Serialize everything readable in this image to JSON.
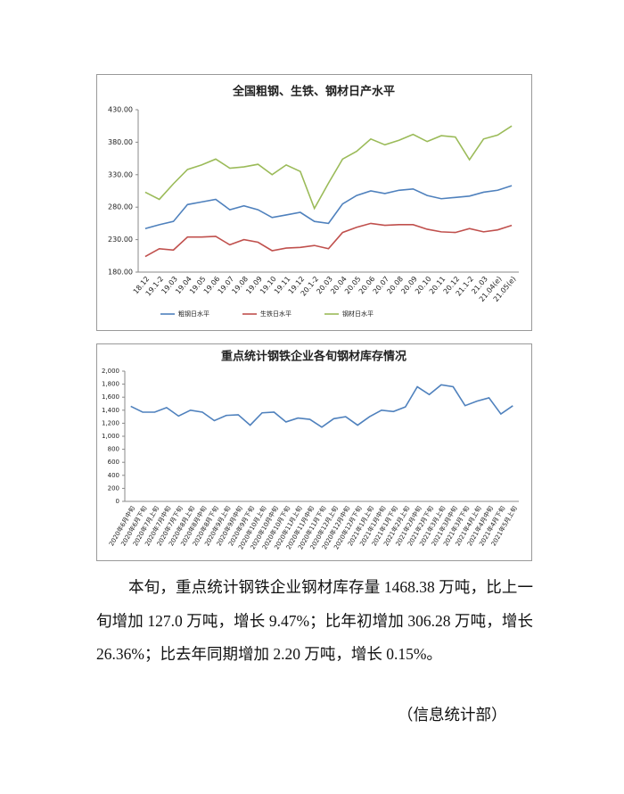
{
  "chart_data": [
    {
      "type": "line",
      "title": "全国粗钢、生铁、钢材日产水平",
      "categories": [
        "18.12",
        "19.1-2",
        "19.03",
        "19.04",
        "19.05",
        "19.06",
        "19.07",
        "19.08",
        "19.09",
        "19.10",
        "19.11",
        "19.12",
        "20.1-2",
        "20.03",
        "20.04",
        "20.05",
        "20.06",
        "20.07",
        "20.08",
        "20.09",
        "20.10",
        "20.11",
        "20.12",
        "21.1-2",
        "21.03",
        "21.04(e)",
        "21.05(e)"
      ],
      "series": [
        {
          "name": "粗钢日水平",
          "color": "#4f81bd",
          "values": [
            247,
            253,
            258,
            284,
            288,
            292,
            276,
            282,
            276,
            264,
            268,
            272,
            258,
            255,
            285,
            298,
            305,
            301,
            306,
            308,
            298,
            293,
            295,
            297,
            303,
            306,
            313
          ]
        },
        {
          "name": "生铁日水平",
          "color": "#c0504d",
          "values": [
            204,
            216,
            214,
            234,
            234,
            235,
            222,
            230,
            226,
            213,
            217,
            218,
            221,
            216,
            241,
            249,
            255,
            252,
            253,
            253,
            246,
            242,
            241,
            247,
            242,
            245,
            252
          ]
        },
        {
          "name": "钢材日水平",
          "color": "#9bbb59",
          "values": [
            303,
            292,
            316,
            338,
            345,
            354,
            340,
            342,
            346,
            330,
            345,
            335,
            278,
            317,
            354,
            366,
            385,
            376,
            383,
            392,
            381,
            390,
            388,
            353,
            385,
            391,
            405
          ]
        }
      ],
      "ylim": [
        180,
        430
      ],
      "yticks": [
        {
          "value": 180,
          "label": "180.00"
        },
        {
          "value": 230,
          "label": "230.00"
        },
        {
          "value": 280,
          "label": "280.00"
        },
        {
          "value": 330,
          "label": "330.00"
        },
        {
          "value": 380,
          "label": "380.00"
        },
        {
          "value": 430,
          "label": "430.00"
        }
      ],
      "grid": false,
      "legend": "bottom"
    },
    {
      "type": "line",
      "title": "重点统计钢铁企业各旬钢材库存情况",
      "categories": [
        "2020年6月中旬",
        "2020年6月下旬",
        "2020年7月上旬",
        "2020年7月中旬",
        "2020年7月下旬",
        "2020年8月上旬",
        "2020年8月中旬",
        "2020年8月下旬",
        "2020年9月上旬",
        "2020年9月中旬",
        "2020年9月下旬",
        "2020年10月上旬",
        "2020年10月中旬",
        "2020年10月下旬",
        "2020年11月上旬",
        "2020年11月中旬",
        "2020年11月下旬",
        "2020年12月上旬",
        "2020年12月中旬",
        "2020年12月下旬",
        "2021年1月上旬",
        "2021年1月中旬",
        "2021年1月下旬",
        "2021年2月上旬",
        "2021年2月中旬",
        "2021年2月下旬",
        "2021年3月上旬",
        "2021年3月中旬",
        "2021年3月下旬",
        "2021年4月上旬",
        "2021年4月中旬",
        "2021年4月下旬",
        "2021年5月上旬"
      ],
      "values": [
        1460,
        1370,
        1370,
        1440,
        1310,
        1400,
        1370,
        1240,
        1320,
        1330,
        1170,
        1360,
        1370,
        1220,
        1280,
        1260,
        1140,
        1270,
        1300,
        1170,
        1300,
        1400,
        1380,
        1450,
        1760,
        1640,
        1790,
        1760,
        1470,
        1540,
        1590,
        1341.38,
        1468.38
      ],
      "color": "#4f81bd",
      "ylim": [
        0,
        2000
      ],
      "yticks": [
        0,
        200,
        400,
        600,
        800,
        {
          "value": 1000,
          "label": "1,000"
        },
        {
          "value": 1200,
          "label": "1,200"
        },
        {
          "value": 1400,
          "label": "1,400"
        },
        {
          "value": 1600,
          "label": "1,600"
        },
        {
          "value": 1800,
          "label": "1,800"
        },
        {
          "value": 2000,
          "label": "2,000"
        }
      ],
      "grid": false
    }
  ],
  "text": {
    "paragraph": "本旬，重点统计钢铁企业钢材库存量 1468.38 万吨，比上一旬增加 127.0 万吨，增长 9.47%；比年初增加 306.28 万吨，增长 26.36%；比去年同期增加 2.20 万吨，增长 0.15%。",
    "signature": "（信息统计部）"
  }
}
